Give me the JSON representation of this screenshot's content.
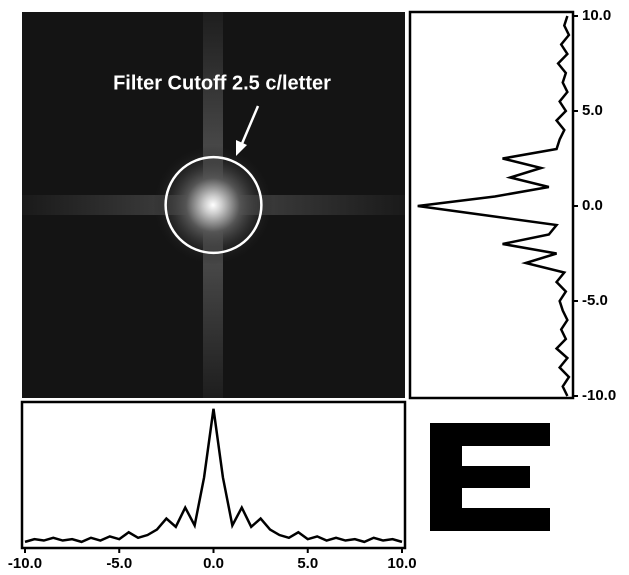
{
  "chart_data": [
    {
      "type": "line",
      "x": [
        -10,
        -9.5,
        -9,
        -8.5,
        -8,
        -7.5,
        -7,
        -6.5,
        -6,
        -5.5,
        -5,
        -4.5,
        -4,
        -3.5,
        -3,
        -2.5,
        -2,
        -1.5,
        -1,
        -0.5,
        0,
        0.5,
        1,
        1.5,
        2,
        2.5,
        3,
        3.5,
        4,
        4.5,
        5,
        5.5,
        6,
        6.5,
        7,
        7.5,
        8,
        8.5,
        9,
        9.5,
        10
      ],
      "values": [
        0.03,
        0.05,
        0.04,
        0.06,
        0.04,
        0.05,
        0.03,
        0.06,
        0.04,
        0.07,
        0.05,
        0.1,
        0.06,
        0.08,
        0.12,
        0.2,
        0.14,
        0.28,
        0.15,
        0.5,
        1.0,
        0.5,
        0.15,
        0.28,
        0.14,
        0.2,
        0.12,
        0.08,
        0.06,
        0.1,
        0.05,
        0.07,
        0.04,
        0.06,
        0.04,
        0.05,
        0.03,
        0.06,
        0.04,
        0.05,
        0.03
      ],
      "color": "#000000",
      "xlim": [
        -10,
        10
      ],
      "xticks": [
        {
          "value": -10,
          "label": "-10.0"
        },
        {
          "value": -5,
          "label": "-5.0"
        },
        {
          "value": 0,
          "label": "0.0"
        },
        {
          "value": 5,
          "label": "5.0"
        },
        {
          "value": 10,
          "label": "10.0"
        }
      ],
      "ylim": [
        0,
        1.05
      ]
    },
    {
      "type": "line",
      "orientation": "vertical",
      "x": [
        -10,
        -9.5,
        -9,
        -8.5,
        -8,
        -7.5,
        -7,
        -6.5,
        -6,
        -5.5,
        -5,
        -4.5,
        -4,
        -3.5,
        -3,
        -2.5,
        -2,
        -1.5,
        -1,
        -0.5,
        0,
        0.5,
        1,
        1.5,
        2,
        2.5,
        3,
        3.5,
        4,
        4.5,
        5,
        5.5,
        6,
        6.5,
        7,
        7.5,
        8,
        8.5,
        9,
        9.5,
        10
      ],
      "values": [
        0.03,
        0.06,
        0.02,
        0.08,
        0.03,
        0.1,
        0.04,
        0.07,
        0.03,
        0.06,
        0.08,
        0.04,
        0.1,
        0.05,
        0.3,
        0.1,
        0.45,
        0.15,
        0.1,
        0.55,
        1.0,
        0.5,
        0.15,
        0.4,
        0.2,
        0.45,
        0.1,
        0.08,
        0.05,
        0.1,
        0.04,
        0.08,
        0.03,
        0.06,
        0.04,
        0.09,
        0.03,
        0.07,
        0.02,
        0.05,
        0.03
      ],
      "color": "#000000",
      "xlim": [
        -10,
        10
      ],
      "xticks": [
        {
          "value": 10,
          "label": "10.0"
        },
        {
          "value": 5,
          "label": "5.0"
        },
        {
          "value": 0,
          "label": "0.0"
        },
        {
          "value": -5,
          "label": "-5.0"
        },
        {
          "value": -10,
          "label": "-10.0"
        }
      ],
      "ylim": [
        0,
        1.05
      ]
    },
    {
      "type": "image",
      "annotation": "Filter Cutoff 2.5 c/letter",
      "cutoff": 2.5,
      "xlim": [
        -10,
        10
      ],
      "ylim": [
        -10,
        10
      ]
    }
  ]
}
